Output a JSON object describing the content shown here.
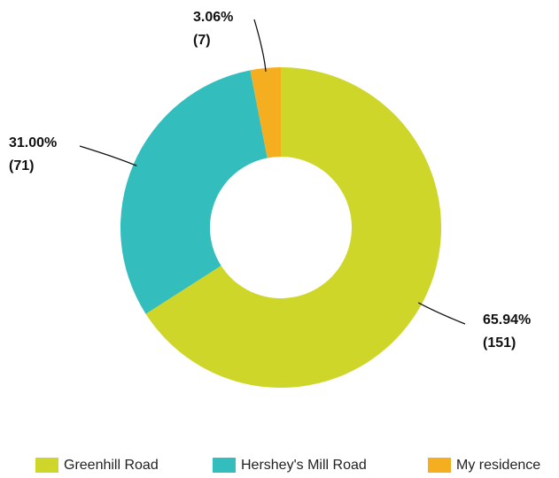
{
  "chart_data": {
    "type": "donut",
    "categories": [
      "Greenhill Road",
      "Hershey's Mill Road",
      "My residence"
    ],
    "values": [
      151,
      71,
      7
    ],
    "value_labels": [
      "(151)",
      "(71)",
      "(7)"
    ],
    "percent_labels": [
      "65.94%",
      "31.00%",
      "3.06%"
    ],
    "colors": [
      "#cdd629",
      "#33bdbd",
      "#f5ae1f"
    ],
    "legend": "bottom"
  }
}
